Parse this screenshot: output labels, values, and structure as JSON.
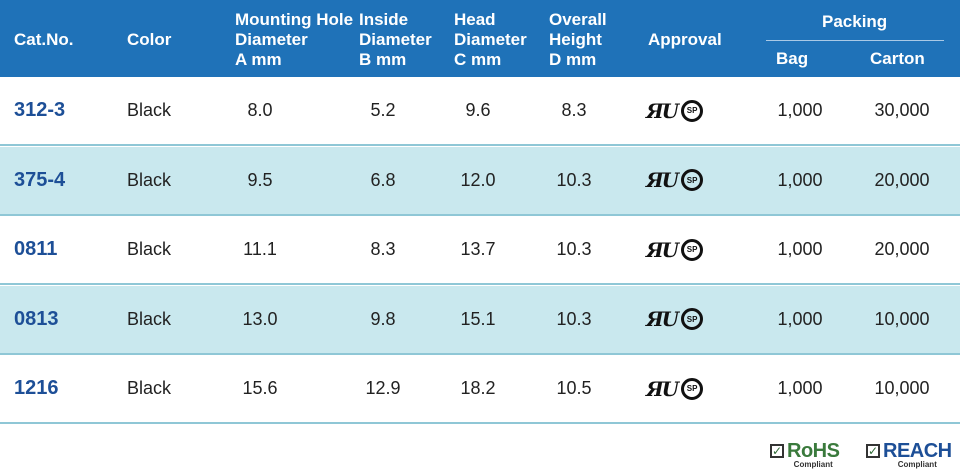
{
  "colors": {
    "header_bg": "#1f72b8",
    "alt_row_bg": "#c9e8ee",
    "cat_text": "#1d4f97",
    "rohs_color": "#3a7a3c",
    "reach_color": "#1d4f97"
  },
  "header": {
    "cat": "Cat.No.",
    "color": "Color",
    "mounting": "Mounting Hole\nDiameter\nA mm",
    "inside": "Inside\nDiameter\nB mm",
    "head": "Head\nDiameter\nC mm",
    "overall": "Overall\nHeight\nD mm",
    "approval": "Approval",
    "packing": "Packing",
    "bag": "Bag",
    "carton": "Carton"
  },
  "rows": [
    {
      "cat": "312-3",
      "color": "Black",
      "a": "8.0",
      "b": "5.2",
      "c": "9.6",
      "d": "8.3",
      "approval": "UL-CSA",
      "bag": "1,000",
      "carton": "30,000"
    },
    {
      "cat": "375-4",
      "color": "Black",
      "a": "9.5",
      "b": "6.8",
      "c": "12.0",
      "d": "10.3",
      "approval": "UL-CSA",
      "bag": "1,000",
      "carton": "20,000"
    },
    {
      "cat": "0811",
      "color": "Black",
      "a": "11.1",
      "b": "8.3",
      "c": "13.7",
      "d": "10.3",
      "approval": "UL-CSA",
      "bag": "1,000",
      "carton": "20,000"
    },
    {
      "cat": "0813",
      "color": "Black",
      "a": "13.0",
      "b": "9.8",
      "c": "15.1",
      "d": "10.3",
      "approval": "UL-CSA",
      "bag": "1,000",
      "carton": "10,000"
    },
    {
      "cat": "1216",
      "color": "Black",
      "a": "15.6",
      "b": "12.9",
      "c": "18.2",
      "d": "10.5",
      "approval": "UL-CSA",
      "bag": "1,000",
      "carton": "10,000"
    }
  ],
  "approval_marks": {
    "ul": "ᴿᵁ",
    "csa": "SP"
  },
  "footer": {
    "rohs": "RoHS",
    "rohs_sub": "Compliant",
    "reach": "REACH",
    "reach_sub": "Compliant",
    "check": "✓"
  }
}
